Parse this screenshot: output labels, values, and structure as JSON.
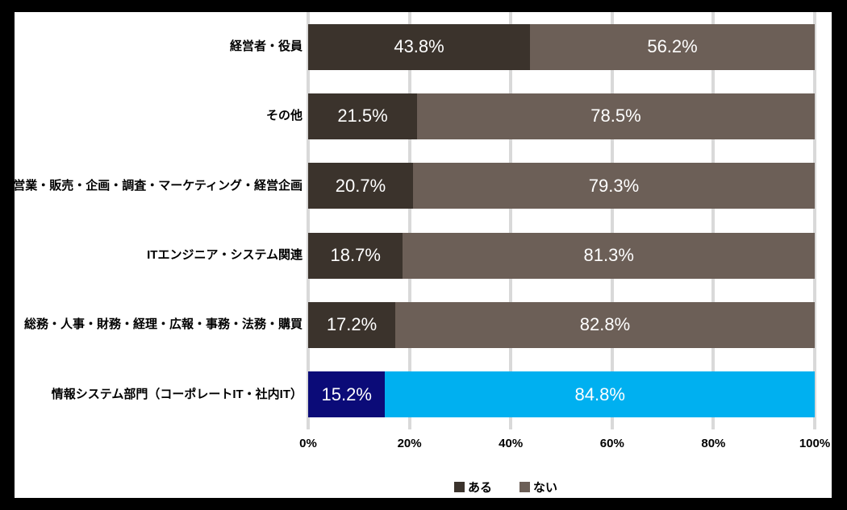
{
  "chart_data": {
    "type": "bar",
    "orientation": "horizontal",
    "stacked": true,
    "title": "",
    "categories": [
      "経営者・役員",
      "その他",
      "営業・販売・企画・調査・マーケティング・経営企画",
      "ITエンジニア・システム関連",
      "総務・人事・財務・経理・広報・事務・法務・購買",
      "情報システム部門（コーポレートIT・社内IT）"
    ],
    "series": [
      {
        "name": "ある",
        "color": "#3b332c",
        "values": [
          43.8,
          21.5,
          20.7,
          18.7,
          17.2,
          15.2
        ]
      },
      {
        "name": "ない",
        "color": "#6c5f57",
        "values": [
          56.2,
          78.5,
          79.3,
          81.3,
          82.8,
          84.8
        ]
      }
    ],
    "highlight_row": 5,
    "highlight_colors": [
      "#0b0b78",
      "#00b0f0"
    ],
    "data_labels": [
      [
        "43.8%",
        "56.2%"
      ],
      [
        "21.5%",
        "78.5%"
      ],
      [
        "20.7%",
        "79.3%"
      ],
      [
        "18.7%",
        "81.3%"
      ],
      [
        "17.2%",
        "82.8%"
      ],
      [
        "15.2%",
        "84.8%"
      ]
    ],
    "x_ticks": [
      "0%",
      "20%",
      "40%",
      "60%",
      "80%",
      "100%"
    ],
    "xlim": [
      0,
      100
    ],
    "grid": true,
    "gridline_color": "#d9d9d9",
    "legend_position": "bottom",
    "legend": [
      {
        "label": "ある",
        "color": "#3b332c"
      },
      {
        "label": "ない",
        "color": "#6c5f57"
      }
    ],
    "background_color": "#ffffff",
    "frame_color": "#000000"
  }
}
